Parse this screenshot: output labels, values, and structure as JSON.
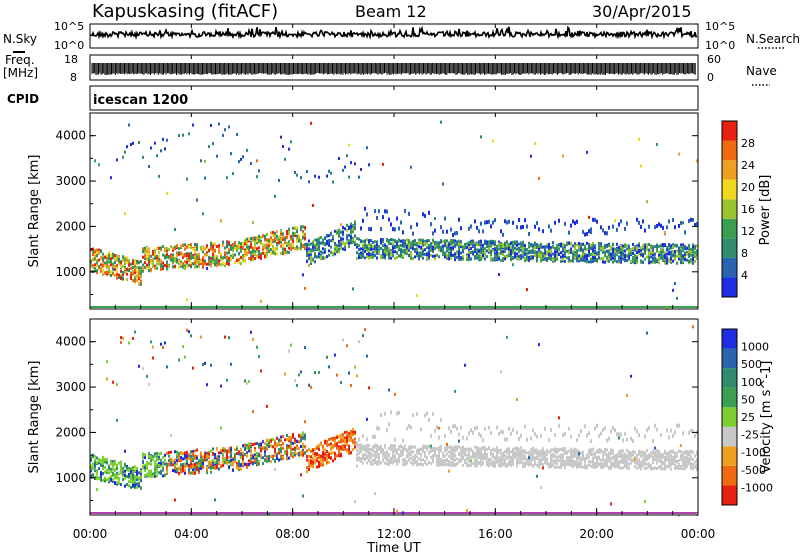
{
  "header": {
    "station": "Kapuskasing (fitACF)",
    "beam": "Beam 12",
    "date": "30/Apr/2015"
  },
  "top_panels": {
    "nsky_label": "N.Sky",
    "nsky_ticks": [
      "10^5",
      "10^0"
    ],
    "nsearch_label": "N.Search",
    "nsearch_ticks": [
      "10^5",
      "10^0"
    ],
    "freq_label_1": "Freq.",
    "freq_label_2": "[MHz]",
    "freq_ticks": [
      "18",
      "8"
    ],
    "nave_label": "Nave",
    "nave_ticks": [
      "60",
      "0"
    ],
    "cpid_label": "CPID",
    "cpid_value": "icescan 1200"
  },
  "chart_data": [
    {
      "type": "heatmap",
      "title": "",
      "ylabel": "Slant Range [km]",
      "ylim": [
        180,
        4500
      ],
      "yticks": [
        "4000",
        "3000",
        "2000",
        "1000"
      ],
      "colorbar_label": "Power [dB]",
      "colorbar_ticks": [
        "28",
        "24",
        "20",
        "16",
        "12",
        "8",
        "4"
      ],
      "colorscale": [
        "#1c2ee0",
        "#2a64b0",
        "#2f8a6e",
        "#3aa050",
        "#9cc430",
        "#f0d820",
        "#f0a020",
        "#f06a10",
        "#e82010"
      ],
      "echo_regions": [
        {
          "time_hours": [
            0.0,
            23.8
          ],
          "range_km": [
            1100,
            1800
          ],
          "typical": "strong",
          "power_db": [
            4,
            28
          ]
        },
        {
          "time_hours": [
            1.0,
            11.0
          ],
          "range_km": [
            3000,
            4300
          ],
          "typical": "weak",
          "power_db": [
            4,
            12
          ]
        },
        {
          "time_hours": [
            10.5,
            23.8
          ],
          "range_km": [
            1800,
            2500
          ],
          "typical": "weak",
          "power_db": [
            4,
            10
          ]
        }
      ]
    },
    {
      "type": "heatmap",
      "title": "",
      "ylabel": "Slant Range [km]",
      "ylim": [
        180,
        4500
      ],
      "yticks": [
        "4000",
        "3000",
        "2000",
        "1000"
      ],
      "colorbar_label": "Velocity [m s^-1]",
      "colorbar_ticks": [
        "1000",
        "500",
        "100",
        "50",
        "25",
        "-25",
        "-100",
        "-500",
        "-1000"
      ],
      "colorscale": [
        "#1c2ee0",
        "#2a64b0",
        "#2f8a6e",
        "#3aa050",
        "#7ccf30",
        "#c8c8c8",
        "#f0a020",
        "#f06a10",
        "#e82010"
      ],
      "xlabel": "Time UT",
      "xticks": [
        "00:00",
        "04:00",
        "08:00",
        "12:00",
        "16:00",
        "20:00",
        "00:00"
      ],
      "xlim_hours": [
        0,
        24
      ]
    }
  ],
  "colors": {
    "ground_scatter": "#c8c8c8",
    "axis": "#000000"
  }
}
